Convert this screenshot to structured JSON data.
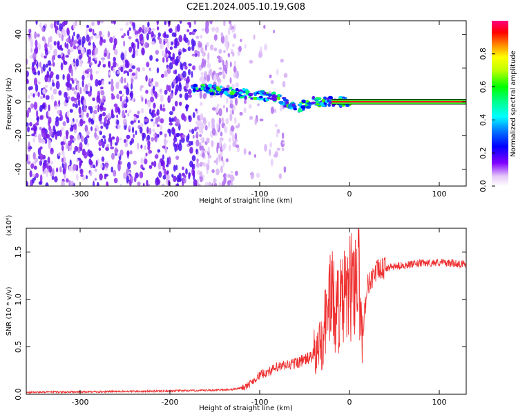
{
  "figure": {
    "title": "C2E1.2024.005.10.19.G08"
  },
  "chart_data": [
    {
      "type": "heatmap",
      "xlabel": "Height of straight line (km)",
      "ylabel": "Frequency (Hz)",
      "xlim": [
        -360,
        130
      ],
      "ylim": [
        -50,
        48
      ],
      "x_ticks": [
        -300,
        -200,
        -100,
        0,
        100
      ],
      "x_tick_labels": [
        "-300",
        "-200",
        "-100",
        "0",
        "100"
      ],
      "y_ticks": [
        -40,
        -20,
        0,
        20,
        40
      ],
      "y_tick_labels": [
        "-40",
        "-20",
        "0",
        "20",
        "40"
      ],
      "colorbar": {
        "label": "Normalized spectral amplitude",
        "range": [
          0,
          1
        ],
        "ticks": [
          0.0,
          0.2,
          0.4,
          0.6,
          0.8
        ],
        "tick_labels": [
          "0.0",
          "0.2",
          "0.4",
          "0.6",
          "0.8"
        ]
      },
      "features": {
        "noise_region_x": [
          -360,
          -125
        ],
        "signal_track": [
          {
            "x": -175,
            "freq": 8
          },
          {
            "x": -150,
            "freq": 7
          },
          {
            "x": -125,
            "freq": 5
          },
          {
            "x": -100,
            "freq": 4
          },
          {
            "x": -80,
            "freq": 2
          },
          {
            "x": -60,
            "freq": -4
          },
          {
            "x": -40,
            "freq": 0
          },
          {
            "x": -20,
            "freq": 0
          },
          {
            "x": 0,
            "freq": 0
          },
          {
            "x": 130,
            "freq": 0
          }
        ],
        "steady_line_x": [
          0,
          130
        ],
        "steady_line_freq": 0
      }
    },
    {
      "type": "line",
      "xlabel": "Height of straight line (km)",
      "ylabel": "SNR (10 * v/v)",
      "y_multiplier_label": "(x10⁴)",
      "xlim": [
        -360,
        130
      ],
      "ylim": [
        0,
        1.75
      ],
      "x_ticks": [
        -300,
        -200,
        -100,
        0,
        100
      ],
      "x_tick_labels": [
        "-300",
        "-200",
        "-100",
        "0",
        "100"
      ],
      "y_ticks": [
        0.0,
        0.5,
        1.0,
        1.5
      ],
      "y_tick_labels": [
        "0.0",
        "0.5",
        "1.0",
        "1.5"
      ],
      "line_color": "#ee3030",
      "series": [
        {
          "values_x": [
            -360,
            -300,
            -250,
            -200,
            -160,
            -130,
            -115,
            -100,
            -80,
            -60,
            -45,
            -35,
            -28,
            -22,
            -15,
            -8,
            0,
            5,
            10,
            14,
            20,
            30,
            40,
            60,
            80,
            100,
            130
          ],
          "values_y": [
            0.02,
            0.025,
            0.03,
            0.035,
            0.04,
            0.05,
            0.08,
            0.2,
            0.28,
            0.33,
            0.38,
            0.45,
            0.7,
            1.05,
            0.9,
            0.95,
            1.1,
            1.2,
            1.35,
            0.6,
            1.15,
            1.3,
            1.33,
            1.36,
            1.38,
            1.39,
            1.37
          ]
        }
      ]
    }
  ]
}
